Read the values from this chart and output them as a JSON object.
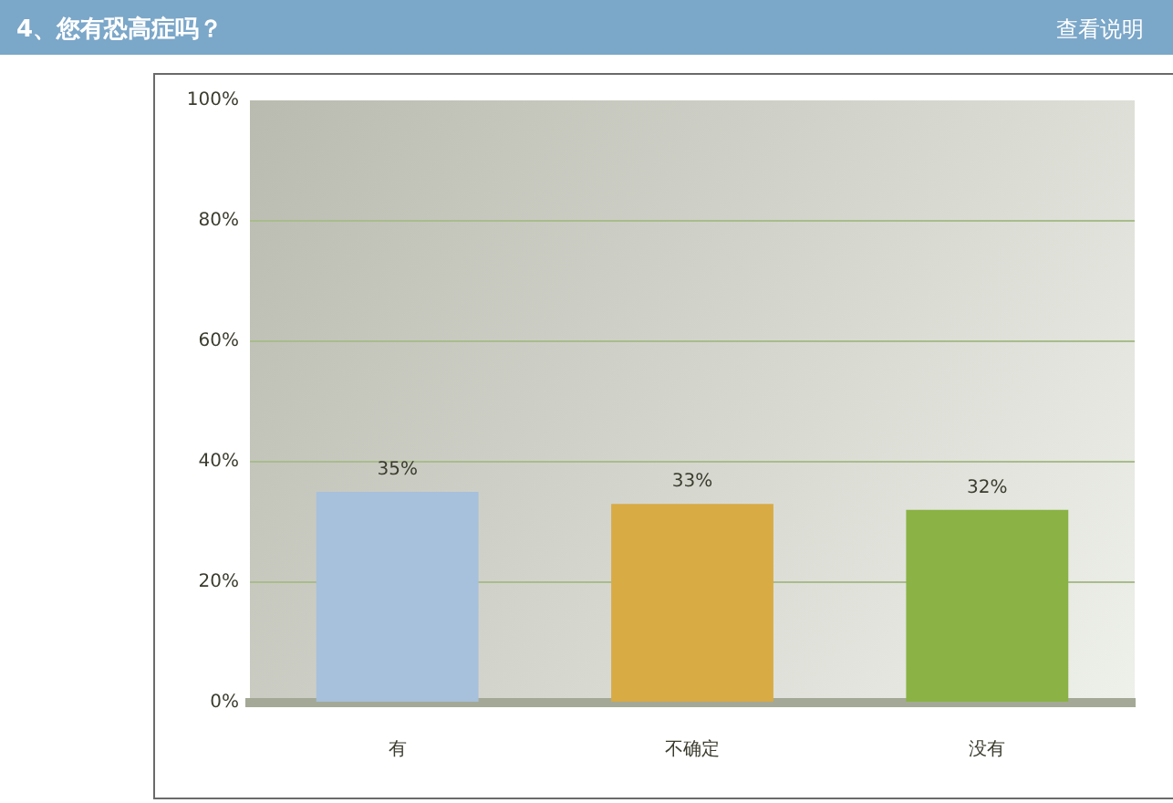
{
  "chart_data": {
    "type": "bar",
    "title": "4、您有恐高症吗？",
    "annotations": [
      "查看说明"
    ],
    "categories": [
      "有",
      "不确定",
      "没有"
    ],
    "values": [
      35,
      33,
      32
    ],
    "colors": [
      "#a7c0db",
      "#d8ab45",
      "#8ab244"
    ],
    "value_labels": [
      "35%",
      "33%",
      "32%"
    ],
    "ylim": [
      0,
      100
    ],
    "yticks": [
      {
        "value": 0,
        "label": "0%"
      },
      {
        "value": 20,
        "label": "20%"
      },
      {
        "value": 40,
        "label": "40%"
      },
      {
        "value": 60,
        "label": "60%"
      },
      {
        "value": 80,
        "label": "80%"
      },
      {
        "value": 100,
        "label": "100%"
      }
    ],
    "grid": "y"
  }
}
